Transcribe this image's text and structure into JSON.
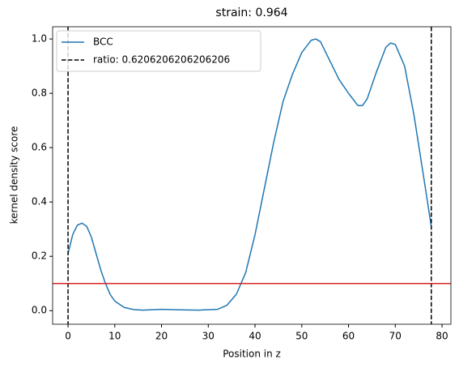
{
  "chart_data": {
    "type": "line",
    "title": "strain: 0.964",
    "x_label": "Position in z",
    "y_label": "kernel density score",
    "x": [
      0,
      1,
      2,
      3,
      4,
      5,
      6,
      7,
      8,
      9,
      10,
      12,
      14,
      16,
      20,
      24,
      28,
      32,
      34,
      36,
      38,
      40,
      42,
      44,
      46,
      48,
      50,
      52,
      53,
      54,
      56,
      58,
      60,
      62,
      63,
      64,
      66,
      68,
      69,
      70,
      72,
      74,
      76,
      77.7
    ],
    "series": [
      {
        "name": "BCC",
        "color": "#1f77b4",
        "values": [
          0.21,
          0.28,
          0.315,
          0.322,
          0.31,
          0.27,
          0.21,
          0.15,
          0.1,
          0.06,
          0.035,
          0.012,
          0.004,
          0.002,
          0.005,
          0.003,
          0.002,
          0.005,
          0.02,
          0.06,
          0.14,
          0.28,
          0.45,
          0.62,
          0.77,
          0.87,
          0.95,
          0.995,
          1.0,
          0.99,
          0.92,
          0.85,
          0.8,
          0.755,
          0.755,
          0.78,
          0.88,
          0.97,
          0.985,
          0.98,
          0.9,
          0.72,
          0.5,
          0.31
        ]
      }
    ],
    "vlines": {
      "name": "ratio: 0.6206206206206206",
      "color": "#000000",
      "values": [
        0,
        77.7
      ]
    },
    "hline": {
      "value": 0.1,
      "color": "#d62728"
    },
    "xlim": [
      -3.3,
      81.9
    ],
    "ylim": [
      -0.05,
      1.045
    ],
    "xticks": [
      0,
      10,
      20,
      30,
      40,
      50,
      60,
      70,
      80
    ],
    "yticks": [
      {
        "value": 0,
        "label": "0.0"
      },
      0.2,
      0.4,
      0.6,
      0.8,
      {
        "value": 1,
        "label": "1.0"
      }
    ],
    "legend": "upper left"
  }
}
